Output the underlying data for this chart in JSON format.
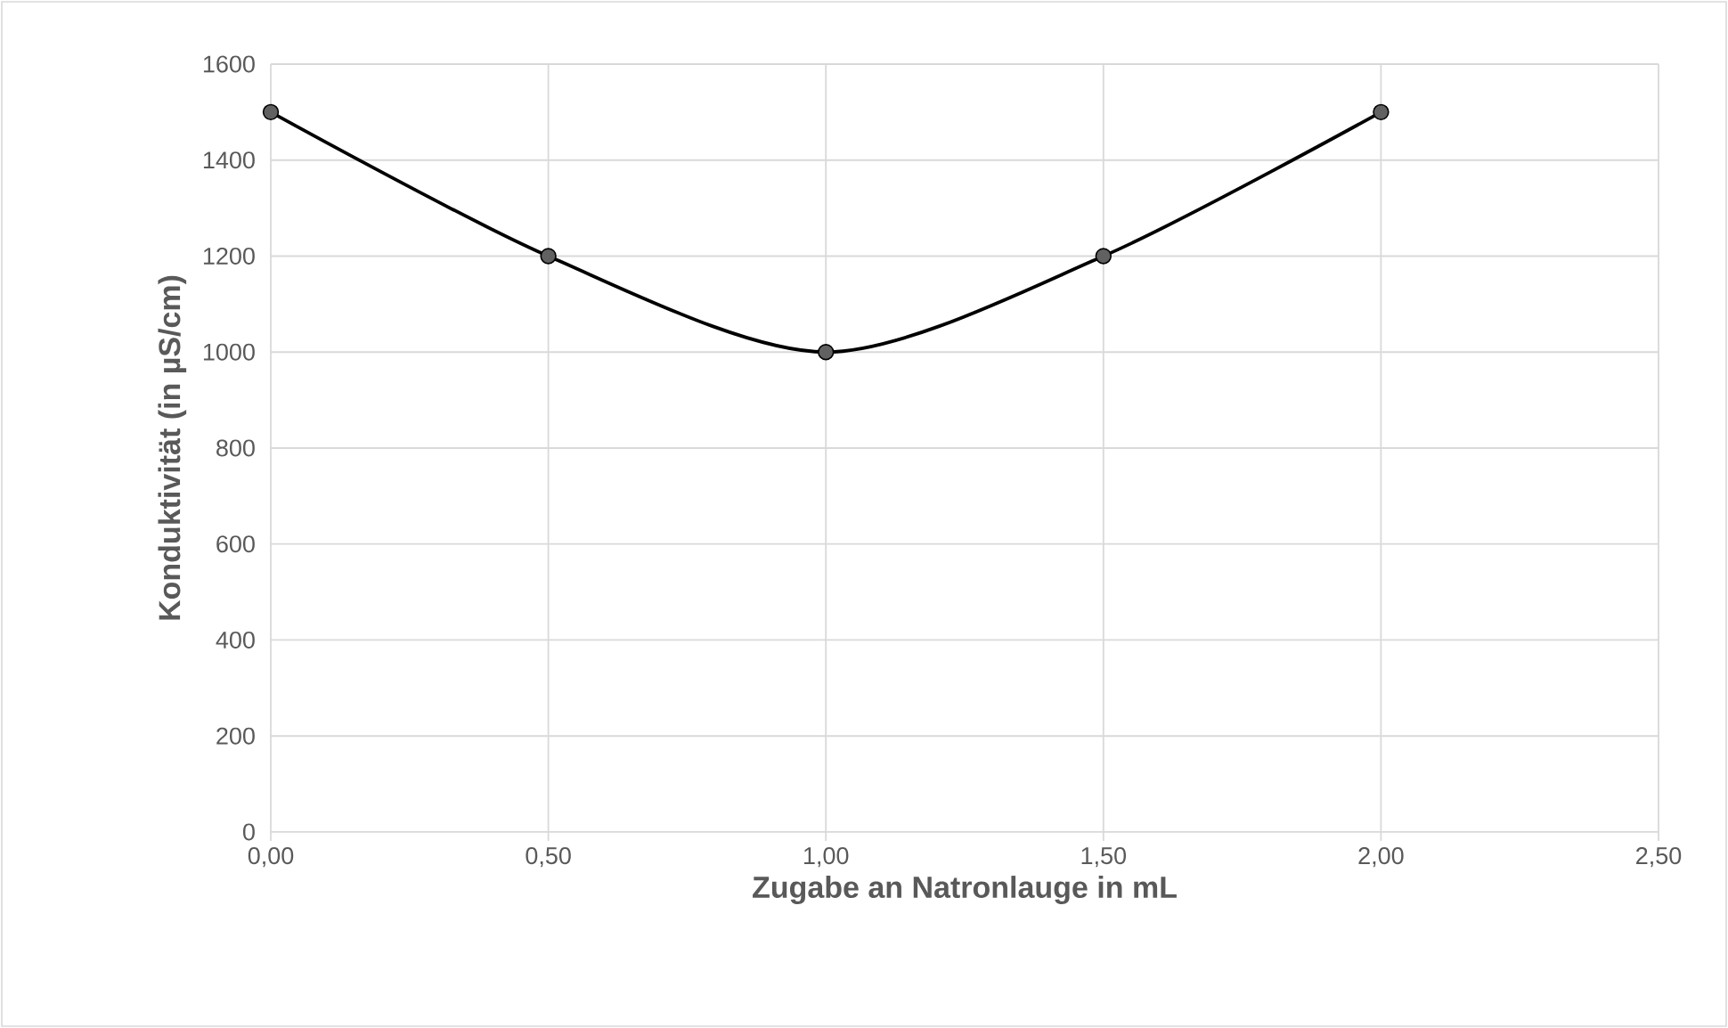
{
  "chart_data": {
    "type": "line",
    "xlabel": "Zugabe an Natronlauge in mL",
    "ylabel": "Konduktivität (in µS/cm)",
    "x": [
      0,
      0.5,
      1,
      1.5,
      2
    ],
    "series": [
      {
        "color": "#000000",
        "values": [
          1500,
          1200,
          1000,
          1200,
          1500
        ]
      }
    ],
    "xlim": [
      0,
      2.5
    ],
    "xticks": [
      {
        "value": 0,
        "label": "0,00"
      },
      {
        "value": 0.5,
        "label": "0,50"
      },
      {
        "value": 1,
        "label": "1,00"
      },
      {
        "value": 1.5,
        "label": "1,50"
      },
      {
        "value": 2,
        "label": "2,00"
      },
      {
        "value": 2.5,
        "label": "2,50"
      }
    ],
    "ylim": [
      0,
      1600
    ],
    "yticks": [
      0,
      200,
      400,
      600,
      800,
      1000,
      1200,
      1400,
      1600
    ],
    "grid": true,
    "marker": "circle",
    "line_style": "solid"
  }
}
